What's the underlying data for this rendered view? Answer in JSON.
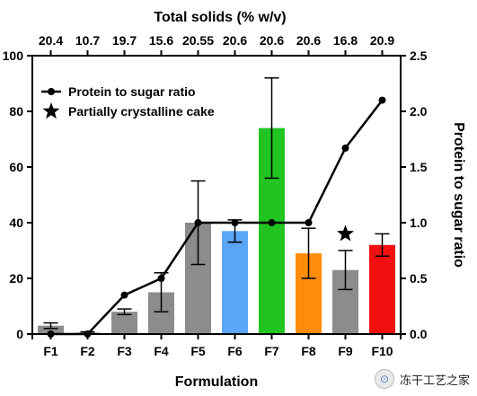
{
  "chart_data": {
    "type": "bar",
    "top_axis_title": "Total solids (% w/v)",
    "top_axis_labels": [
      "20.4",
      "10.7",
      "19.7",
      "15.6",
      "20.55",
      "20.6",
      "20.6",
      "20.6",
      "16.8",
      "20.9"
    ],
    "xlabel": "Formulation",
    "ylabel_right": "Protein to sugar ratio",
    "categories": [
      "F1",
      "F2",
      "F3",
      "F4",
      "F5",
      "F6",
      "F7",
      "F8",
      "F9",
      "F10"
    ],
    "ylim": [
      0,
      100
    ],
    "yticks": [
      0,
      20,
      40,
      60,
      80,
      100
    ],
    "y2lim": [
      0,
      2.5
    ],
    "y2ticks": [
      "0.0",
      "0.5",
      "1.0",
      "1.5",
      "2.0",
      "2.5"
    ],
    "bars": {
      "values": [
        3,
        0.5,
        8,
        15,
        40,
        37,
        74,
        29,
        23,
        32
      ],
      "error": [
        1,
        0.3,
        1,
        7,
        15,
        4,
        18,
        9,
        7,
        4
      ],
      "colors": [
        "#8c8c8c",
        "#8c8c8c",
        "#8c8c8c",
        "#8c8c8c",
        "#8c8c8c",
        "#5aa5f5",
        "#22c422",
        "#ff8c0a",
        "#8c8c8c",
        "#f20f0f"
      ]
    },
    "line": {
      "name": "Protein to sugar ratio",
      "values": [
        0.0,
        0.0,
        0.35,
        0.5,
        1.0,
        1.0,
        1.0,
        1.0,
        1.67,
        2.1
      ]
    },
    "legend": {
      "line_label": "Protein to sugar ratio",
      "star_label": "Partially crystalline cake",
      "placement": "top-left"
    },
    "star_annotation": {
      "category": "F9",
      "y": 36
    }
  },
  "watermark": {
    "text": "冻干工艺之家",
    "icon": "wechat-icon"
  }
}
